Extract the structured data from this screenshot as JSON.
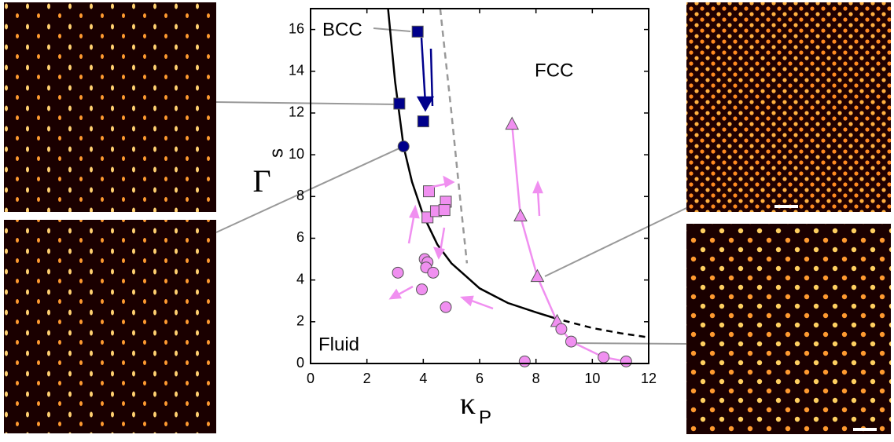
{
  "chart_data": {
    "type": "scatter",
    "x_label": "κ",
    "x_label_sub": "P",
    "y_label": "Γ",
    "y_label_sub": "s",
    "annotations": [
      "BCC",
      "FCC",
      "Fluid"
    ],
    "xlim": [
      0,
      12
    ],
    "ylim": [
      0,
      17
    ],
    "xticks": [
      0,
      2,
      4,
      6,
      8,
      10,
      12
    ],
    "yticks": [
      0,
      2,
      4,
      6,
      8,
      10,
      12,
      14,
      16
    ],
    "series": [
      {
        "marker": "square",
        "color": "#00008b",
        "x": [
          3.8,
          3.15,
          4.0
        ],
        "values": [
          15.9,
          12.45,
          11.6
        ]
      },
      {
        "marker": "circle",
        "color": "#00008b",
        "x": [
          3.3
        ],
        "values": [
          10.4
        ]
      },
      {
        "marker": "square",
        "color": "#f08ff0",
        "x": [
          4.2,
          4.15,
          4.45,
          4.8,
          4.75
        ],
        "values": [
          8.25,
          7.0,
          7.3,
          7.75,
          7.35
        ]
      },
      {
        "marker": "circle",
        "color": "#f08ff0",
        "x": [
          3.1,
          3.95,
          4.05,
          4.15,
          4.1,
          4.35,
          4.8,
          7.6
        ],
        "values": [
          4.35,
          3.55,
          5.0,
          4.85,
          4.6,
          4.35,
          2.7,
          0.1
        ]
      },
      {
        "marker": "triangle",
        "color": "#f08ff0",
        "line": true,
        "x": [
          7.15,
          7.45,
          8.05,
          8.75
        ],
        "values": [
          11.45,
          7.05,
          4.15,
          2.0
        ]
      },
      {
        "marker": "circle",
        "color": "#f08ff0",
        "line": true,
        "x": [
          8.9,
          9.25,
          10.4,
          11.2
        ],
        "values": [
          1.65,
          1.05,
          0.3,
          0.1
        ]
      }
    ],
    "curves": [
      {
        "color": "#000000",
        "dash": false,
        "x": [
          2.75,
          3.0,
          3.3,
          3.6,
          4.0,
          4.5,
          5.0,
          5.5,
          6.0,
          7.0,
          8.0,
          8.6
        ],
        "values": [
          17,
          13.5,
          10.4,
          8.7,
          7.1,
          5.7,
          4.8,
          4.2,
          3.6,
          2.9,
          2.45,
          2.2
        ]
      },
      {
        "color": "#000000",
        "dash": true,
        "x": [
          8.6,
          9.0,
          10.0,
          11.0,
          12.0
        ],
        "values": [
          2.2,
          2.05,
          1.7,
          1.45,
          1.25
        ]
      },
      {
        "color": "#999999",
        "dash": true,
        "x": [
          4.6,
          5.0,
          5.3,
          5.55
        ],
        "values": [
          17,
          12,
          8,
          4.8
        ]
      }
    ]
  }
}
